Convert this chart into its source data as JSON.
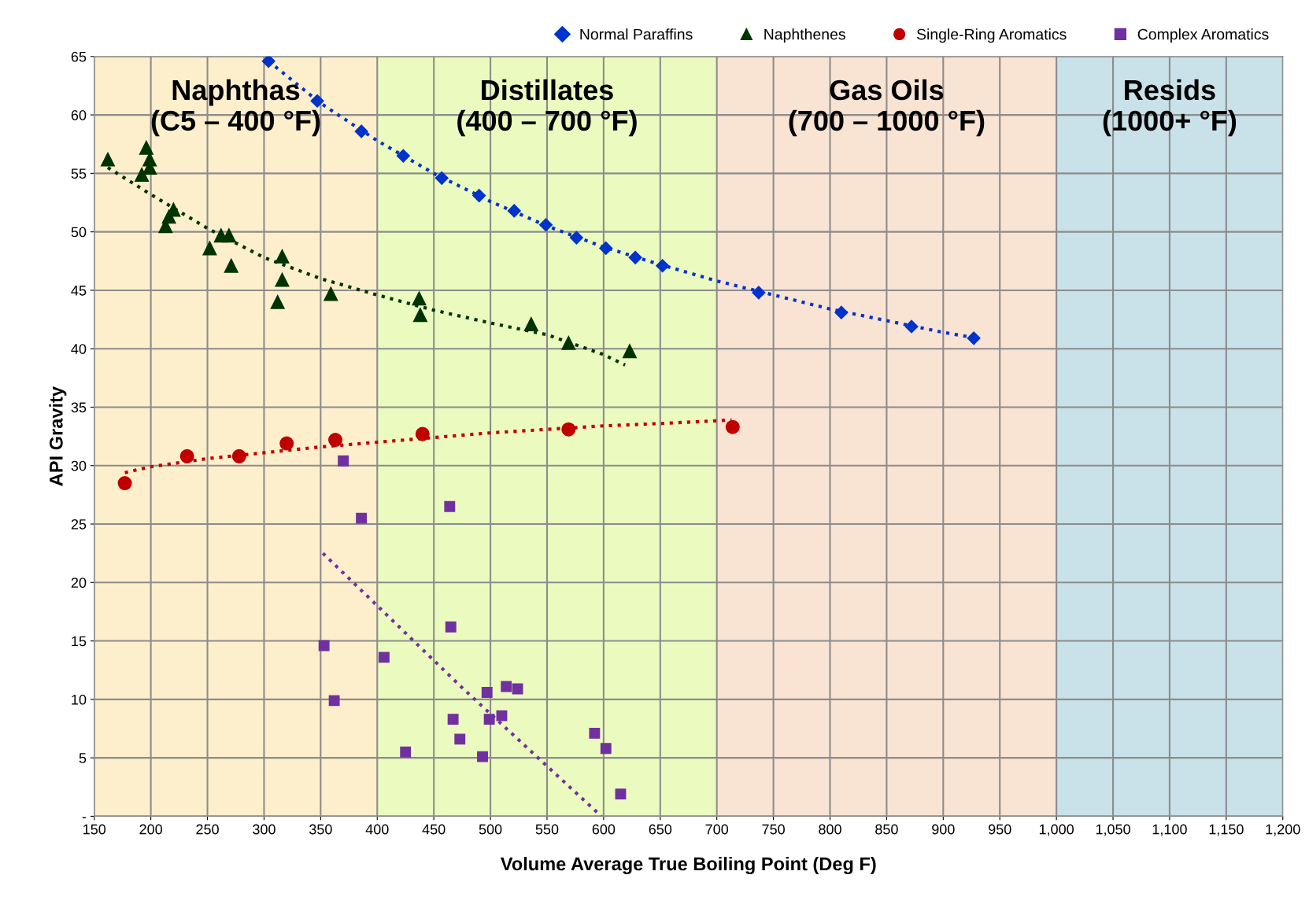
{
  "chart_data": {
    "type": "scatter",
    "xlabel": "Volume Average True Boiling Point (Deg F)",
    "ylabel": "API Gravity",
    "xlim": [
      150,
      1200
    ],
    "ylim": [
      0,
      65
    ],
    "xticks": [
      150,
      200,
      250,
      300,
      350,
      400,
      450,
      500,
      550,
      600,
      650,
      700,
      750,
      800,
      850,
      900,
      950,
      {
        "value": 1000,
        "label": "1,000"
      },
      {
        "value": 1050,
        "label": "1,050"
      },
      {
        "value": 1100,
        "label": "1,100"
      },
      {
        "value": 1150,
        "label": "1,150"
      },
      {
        "value": 1200,
        "label": "1,200"
      }
    ],
    "yticks": [
      {
        "value": 0,
        "label": "-"
      },
      5,
      10,
      15,
      20,
      25,
      30,
      35,
      40,
      45,
      50,
      55,
      60,
      65
    ],
    "grid": true,
    "legend": "top right",
    "bands": [
      {
        "axis": "x",
        "from": 150,
        "to": 400,
        "label": "Naphthas\n(C5 – 400 °F)",
        "color": "#fdefcc"
      },
      {
        "axis": "x",
        "from": 400,
        "to": 700,
        "label": "Distillates\n(400 – 700 °F)",
        "color": "#ebfbbf"
      },
      {
        "axis": "x",
        "from": 700,
        "to": 1000,
        "label": "Gas Oils\n(700 – 1000 °F)",
        "color": "#f9e3d3"
      },
      {
        "axis": "x",
        "from": 1000,
        "to": 1200,
        "label": "Resids\n(1000+ °F)",
        "color": "#c9e1e8"
      }
    ],
    "series": [
      {
        "name": "Normal Paraffins",
        "color": "#0033cc",
        "marker": "diamond",
        "x": [
          304,
          347,
          386,
          423,
          457,
          490,
          521,
          549,
          576,
          602,
          628,
          652,
          737,
          810,
          872,
          927
        ],
        "values": [
          64.6,
          61.2,
          58.6,
          56.5,
          54.6,
          53.1,
          51.8,
          50.6,
          49.5,
          48.6,
          47.8,
          47.1,
          44.8,
          43.1,
          41.9,
          40.9
        ]
      },
      {
        "name": "Naphthenes",
        "color": "#003300",
        "marker": "triangle",
        "x": [
          162,
          192,
          196,
          199,
          199,
          213,
          216,
          220,
          252,
          262,
          269,
          271,
          312,
          316,
          316,
          359,
          437,
          438,
          536,
          569,
          623
        ],
        "values": [
          56.2,
          54.9,
          57.2,
          56.2,
          55.5,
          50.5,
          51.3,
          51.9,
          48.6,
          49.7,
          49.7,
          47.1,
          44.0,
          45.9,
          47.9,
          44.7,
          44.3,
          42.9,
          42.1,
          40.5,
          39.8
        ]
      },
      {
        "name": "Single-Ring Aromatics",
        "color": "#c00000",
        "marker": "circle",
        "x": [
          177,
          232,
          278,
          320,
          363,
          440,
          569,
          714
        ],
        "values": [
          28.5,
          30.8,
          30.8,
          31.9,
          32.2,
          32.7,
          33.1,
          33.3
        ]
      },
      {
        "name": "Complex Aromatics",
        "color": "#7030a0",
        "marker": "square",
        "x": [
          370,
          386,
          464,
          353,
          465,
          406,
          362,
          425,
          467,
          473,
          493,
          497,
          499,
          510,
          514,
          524,
          592,
          602,
          615
        ],
        "values": [
          30.4,
          25.5,
          26.5,
          14.6,
          16.2,
          13.6,
          9.9,
          5.5,
          8.3,
          6.6,
          5.1,
          10.6,
          8.3,
          8.6,
          11.1,
          10.9,
          7.1,
          5.8,
          1.9
        ]
      },
      {
        "type": "line",
        "color": "#0033cc",
        "line_style": "dotted",
        "x": [
          304,
          350,
          400,
          450,
          500,
          550,
          600,
          650,
          700,
          750,
          800,
          850,
          900,
          930
        ],
        "values": [
          64.6,
          61.0,
          57.8,
          55.0,
          52.6,
          50.5,
          48.7,
          47.2,
          45.8,
          44.6,
          43.4,
          42.4,
          41.4,
          40.9
        ]
      },
      {
        "type": "line",
        "color": "#003300",
        "line_style": "dotted",
        "x": [
          162,
          200,
          250,
          300,
          350,
          400,
          450,
          500,
          550,
          600,
          619
        ],
        "values": [
          55.5,
          53.2,
          50.3,
          47.8,
          46.0,
          44.6,
          43.3,
          42.2,
          41.2,
          39.5,
          38.6
        ]
      },
      {
        "type": "line",
        "color": "#c00000",
        "line_style": "dotted",
        "x": [
          177,
          200,
          250,
          300,
          350,
          400,
          450,
          500,
          550,
          600,
          650,
          713
        ],
        "values": [
          29.4,
          29.9,
          30.6,
          31.1,
          31.6,
          32.0,
          32.4,
          32.8,
          33.1,
          33.4,
          33.6,
          33.9
        ]
      },
      {
        "type": "line",
        "color": "#7030a0",
        "line_style": "dotted",
        "x": [
          352,
          475,
          598
        ],
        "values": [
          22.5,
          11.0,
          0
        ]
      }
    ]
  }
}
